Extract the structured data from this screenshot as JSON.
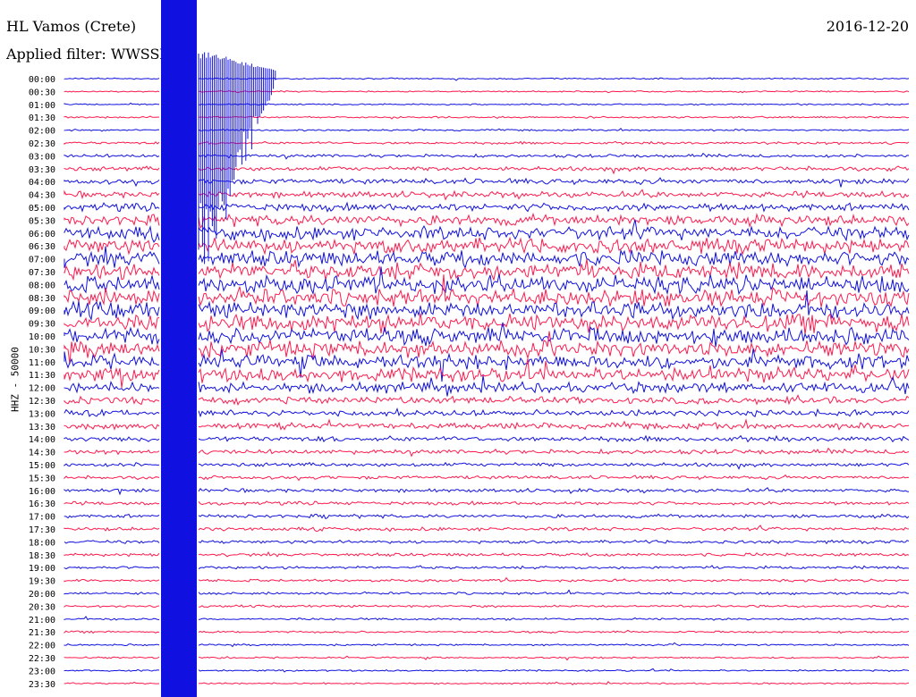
{
  "header": {
    "station": "HL Vamos (Crete)",
    "date": "2016-12-20",
    "filter_text": "Applied filter: WWSSN"
  },
  "channel_label": "HHZ - 50000",
  "colors": {
    "blue": "#1010e0",
    "red": "#ff1a4d",
    "text": "#000000"
  },
  "chart_data": {
    "type": "line",
    "title": "HL Vamos (Crete)",
    "subtitle": "Applied filter: WWSSN",
    "ylabel": "HHZ - 50000",
    "xlabel": "",
    "rows": [
      "00:00",
      "00:30",
      "01:00",
      "01:30",
      "02:00",
      "02:30",
      "03:00",
      "03:30",
      "04:00",
      "04:30",
      "05:00",
      "05:30",
      "06:00",
      "06:30",
      "07:00",
      "07:30",
      "08:00",
      "08:30",
      "09:00",
      "09:30",
      "10:00",
      "10:30",
      "11:00",
      "11:30",
      "12:00",
      "12:30",
      "13:00",
      "13:30",
      "14:00",
      "14:30",
      "15:00",
      "15:30",
      "16:00",
      "16:30",
      "17:00",
      "17:30",
      "18:00",
      "18:30",
      "19:00",
      "19:30",
      "20:00",
      "20:30",
      "21:00",
      "21:30",
      "22:00",
      "22:30",
      "23:00",
      "23:30"
    ],
    "row_colors": [
      "blue",
      "red"
    ],
    "noise_level": [
      0.08,
      0.08,
      0.08,
      0.1,
      0.1,
      0.15,
      0.18,
      0.25,
      0.3,
      0.35,
      0.45,
      0.6,
      0.75,
      0.85,
      0.9,
      0.95,
      1.0,
      1.0,
      0.95,
      1.0,
      0.95,
      0.9,
      0.85,
      0.8,
      0.6,
      0.4,
      0.35,
      0.35,
      0.3,
      0.25,
      0.22,
      0.2,
      0.2,
      0.2,
      0.2,
      0.2,
      0.18,
      0.18,
      0.16,
      0.15,
      0.14,
      0.13,
      0.12,
      0.11,
      0.1,
      0.1,
      0.09,
      0.09
    ],
    "event": {
      "label": "saturated earthquake signal",
      "start_row": "00:00",
      "end_row": "23:30"
    },
    "grid": false,
    "legend": "none"
  }
}
